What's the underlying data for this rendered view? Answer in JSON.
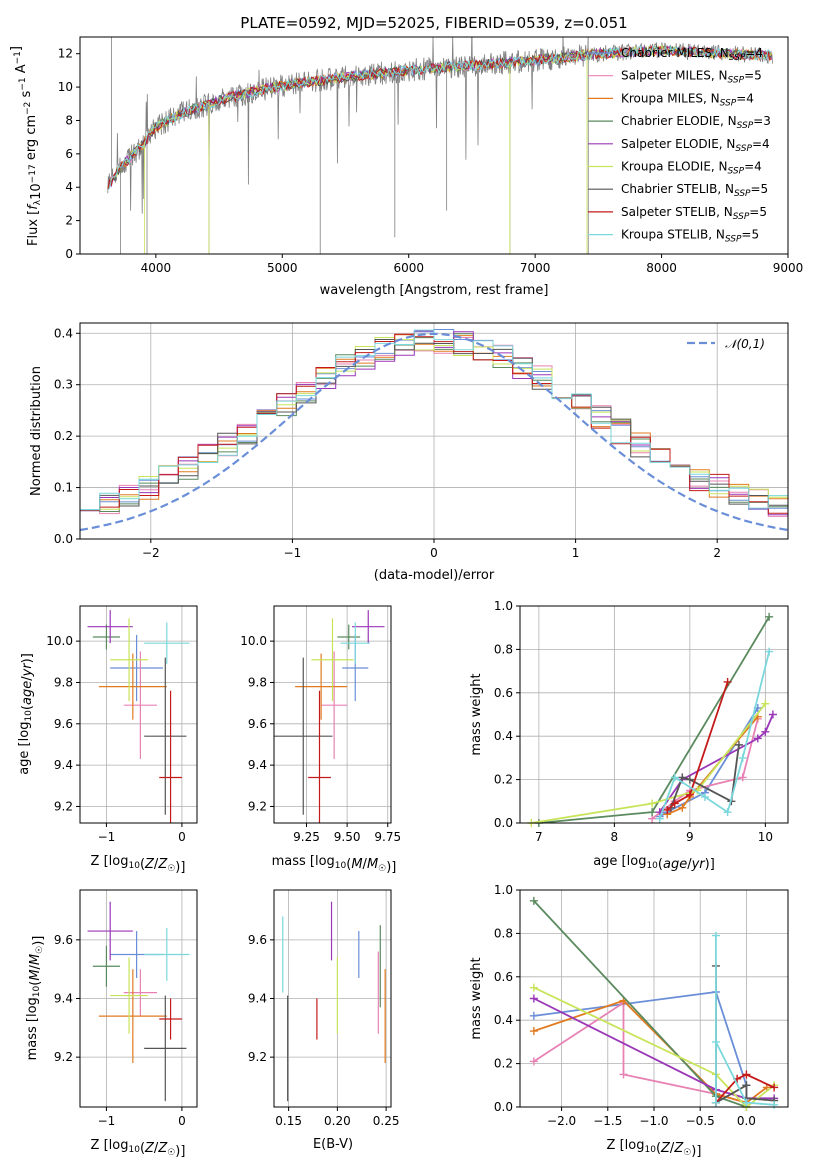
{
  "figure": {
    "title": "PLATE=0592, MJD=52025, FIBERID=0539, z=0.051",
    "background": "#ffffff"
  },
  "colors": {
    "Chabrier MILES": "#6a8fd8",
    "Salpeter MILES": "#e882b4",
    "Kroupa MILES": "#e07b20",
    "Chabrier ELODIE": "#5a8a5e",
    "Salpeter ELODIE": "#9a36b8",
    "Kroupa ELODIE": "#c8e45a",
    "Chabrier STELIB": "#555555",
    "Salpeter STELIB": "#c41a1a",
    "Kroupa STELIB": "#7ad8dc",
    "spectrum": "#808080"
  },
  "chart_data": [
    {
      "id": "spectrum",
      "type": "line",
      "title": "PLATE=0592, MJD=52025, FIBERID=0539, z=0.051",
      "xlabel": "wavelength [Angstrom, rest frame]",
      "ylabel": "Flux [f_λ 10^-17 erg cm^-2 s^-1 A^-1]",
      "xlim": [
        3400,
        9000
      ],
      "ylim": [
        0,
        13
      ],
      "xticks": [
        4000,
        5000,
        6000,
        7000,
        8000,
        9000
      ],
      "yticks": [
        0,
        2,
        4,
        6,
        8,
        10,
        12
      ],
      "legend_position": "right",
      "grid": false,
      "legend": [
        {
          "label": "Chabrier MILES, N",
          "sub": "SSP",
          "tail": "=4"
        },
        {
          "label": "Salpeter MILES, N",
          "sub": "SSP",
          "tail": "=5"
        },
        {
          "label": "Kroupa MILES, N",
          "sub": "SSP",
          "tail": "=4"
        },
        {
          "label": "Chabrier ELODIE, N",
          "sub": "SSP",
          "tail": "=3"
        },
        {
          "label": "Salpeter ELODIE, N",
          "sub": "SSP",
          "tail": "=4"
        },
        {
          "label": "Kroupa ELODIE, N",
          "sub": "SSP",
          "tail": "=4"
        },
        {
          "label": "Chabrier STELIB, N",
          "sub": "SSP",
          "tail": "=5"
        },
        {
          "label": "Salpeter STELIB, N",
          "sub": "SSP",
          "tail": "=5"
        },
        {
          "label": "Kroupa STELIB, N",
          "sub": "SSP",
          "tail": "=5"
        }
      ],
      "continuum": {
        "x": [
          3620,
          3700,
          3800,
          3900,
          4000,
          4200,
          4500,
          4800,
          5100,
          5500,
          6000,
          6500,
          7000,
          7500,
          8000,
          8500,
          8900
        ],
        "y": [
          4.0,
          5.0,
          5.8,
          6.6,
          7.6,
          8.4,
          9.2,
          9.8,
          10.2,
          10.6,
          11.0,
          11.3,
          11.6,
          12.0,
          12.2,
          12.0,
          11.9
        ]
      }
    },
    {
      "id": "residuals",
      "type": "line",
      "xlabel": "(data-model)/error",
      "ylabel": "Normed distribution",
      "xlim": [
        -2.5,
        2.5
      ],
      "ylim": [
        0,
        0.42
      ],
      "xticks": [
        -2,
        -1,
        0,
        1,
        2
      ],
      "yticks": [
        0.0,
        0.1,
        0.2,
        0.3,
        0.4
      ],
      "grid": true,
      "legend": [
        {
          "label": "𝒩(0,1)",
          "style": "dashed",
          "color": "#6a8fd8"
        }
      ],
      "legend_position": "top-right"
    },
    {
      "id": "age-vs-Z",
      "type": "scatter",
      "xlabel": "Z [log10(Z/Z☉)]",
      "ylabel": "age [log10(age/yr)]",
      "xlim": [
        -1.35,
        0.2
      ],
      "ylim": [
        9.12,
        10.17
      ],
      "xticks": [
        -1,
        0
      ],
      "yticks": [
        9.2,
        9.4,
        9.6,
        9.8,
        10.0
      ],
      "grid": true,
      "points": [
        {
          "model": "Chabrier MILES",
          "x": -0.6,
          "y": 9.87,
          "xerr": 0.35,
          "yerr": 0.16
        },
        {
          "model": "Salpeter MILES",
          "x": -0.55,
          "y": 9.69,
          "xerr": 0.22,
          "yerr": 0.26
        },
        {
          "model": "Kroupa MILES",
          "x": -0.65,
          "y": 9.78,
          "xerr": 0.45,
          "yerr": 0.16
        },
        {
          "model": "Chabrier ELODIE",
          "x": -1.0,
          "y": 10.02,
          "xerr": 0.18,
          "yerr": 0.06
        },
        {
          "model": "Salpeter ELODIE",
          "x": -0.95,
          "y": 10.07,
          "xerr": 0.3,
          "yerr": 0.08
        },
        {
          "model": "Kroupa ELODIE",
          "x": -0.7,
          "y": 9.91,
          "xerr": 0.25,
          "yerr": 0.2
        },
        {
          "model": "Chabrier STELIB",
          "x": -0.22,
          "y": 9.54,
          "xerr": 0.28,
          "yerr": 0.38
        },
        {
          "model": "Salpeter STELIB",
          "x": -0.15,
          "y": 9.34,
          "xerr": 0.15,
          "yerr": 0.42
        },
        {
          "model": "Kroupa STELIB",
          "x": -0.2,
          "y": 9.99,
          "xerr": 0.3,
          "yerr": 0.1
        }
      ]
    },
    {
      "id": "age-vs-mass",
      "type": "scatter",
      "xlabel": "mass [log10(M/M☉)]",
      "xlim": [
        9.05,
        9.77
      ],
      "ylim": [
        9.12,
        10.17
      ],
      "xticks": [
        9.25,
        9.5,
        9.75
      ],
      "yticks": [
        9.2,
        9.4,
        9.6,
        9.8,
        10.0
      ],
      "grid": true,
      "points": [
        {
          "model": "Chabrier MILES",
          "x": 9.55,
          "y": 9.87,
          "xerr": 0.08,
          "yerr": 0.16
        },
        {
          "model": "Salpeter MILES",
          "x": 9.42,
          "y": 9.69,
          "xerr": 0.08,
          "yerr": 0.26
        },
        {
          "model": "Kroupa MILES",
          "x": 9.34,
          "y": 9.78,
          "xerr": 0.16,
          "yerr": 0.16
        },
        {
          "model": "Chabrier ELODIE",
          "x": 9.51,
          "y": 10.02,
          "xerr": 0.07,
          "yerr": 0.06
        },
        {
          "model": "Salpeter ELODIE",
          "x": 9.63,
          "y": 10.07,
          "xerr": 0.1,
          "yerr": 0.08
        },
        {
          "model": "Kroupa ELODIE",
          "x": 9.41,
          "y": 9.91,
          "xerr": 0.13,
          "yerr": 0.2
        },
        {
          "model": "Chabrier STELIB",
          "x": 9.23,
          "y": 9.54,
          "xerr": 0.18,
          "yerr": 0.38
        },
        {
          "model": "Salpeter STELIB",
          "x": 9.33,
          "y": 9.34,
          "xerr": 0.07,
          "yerr": 0.42
        },
        {
          "model": "Kroupa STELIB",
          "x": 9.55,
          "y": 9.99,
          "xerr": 0.09,
          "yerr": 0.1
        }
      ]
    },
    {
      "id": "weight-vs-age",
      "type": "line",
      "xlabel": "age [log10(age/yr)]",
      "ylabel": "mass weight",
      "xlim": [
        6.75,
        10.3
      ],
      "ylim": [
        0,
        1.0
      ],
      "xticks": [
        7,
        8,
        9,
        10
      ],
      "yticks": [
        0.0,
        0.2,
        0.4,
        0.6,
        0.8,
        1.0
      ],
      "grid": true,
      "series": [
        {
          "name": "Chabrier MILES",
          "x": [
            8.6,
            8.7,
            9.2,
            9.9
          ],
          "y": [
            0.03,
            0.05,
            0.14,
            0.53
          ]
        },
        {
          "name": "Salpeter MILES",
          "x": [
            8.5,
            8.8,
            9.0,
            9.7,
            9.9
          ],
          "y": [
            0.02,
            0.1,
            0.15,
            0.21,
            0.48
          ]
        },
        {
          "name": "Kroupa MILES",
          "x": [
            8.7,
            8.9,
            9.0,
            9.9
          ],
          "y": [
            0.04,
            0.07,
            0.12,
            0.49
          ]
        },
        {
          "name": "Chabrier ELODIE",
          "x": [
            7.0,
            8.5,
            10.05
          ],
          "y": [
            0.0,
            0.05,
            0.95
          ]
        },
        {
          "name": "Salpeter ELODIE",
          "x": [
            8.6,
            8.9,
            9.9,
            10.0,
            10.1
          ],
          "y": [
            0.05,
            0.2,
            0.39,
            0.42,
            0.5
          ]
        },
        {
          "name": "Kroupa ELODIE",
          "x": [
            6.9,
            8.5,
            9.1,
            10.0
          ],
          "y": [
            0.0,
            0.09,
            0.15,
            0.55
          ]
        },
        {
          "name": "Chabrier STELIB",
          "x": [
            8.75,
            8.9,
            9.0,
            9.55,
            9.65
          ],
          "y": [
            0.07,
            0.21,
            0.2,
            0.1,
            0.36
          ]
        },
        {
          "name": "Salpeter STELIB",
          "x": [
            8.7,
            8.8,
            9.0,
            9.5
          ],
          "y": [
            0.06,
            0.09,
            0.13,
            0.65
          ]
        },
        {
          "name": "Kroupa STELIB",
          "x": [
            8.6,
            8.8,
            9.2,
            9.5,
            9.7,
            10.05
          ],
          "y": [
            0.02,
            0.21,
            0.12,
            0.05,
            0.3,
            0.79
          ]
        }
      ]
    },
    {
      "id": "mass-vs-Z",
      "type": "scatter",
      "xlabel": "Z [log10(Z/Z☉)]",
      "ylabel": "mass [log10(M/M☉)]",
      "xlim": [
        -1.35,
        0.2
      ],
      "ylim": [
        9.03,
        9.77
      ],
      "xticks": [
        -1,
        0
      ],
      "yticks": [
        9.2,
        9.4,
        9.6
      ],
      "grid": true,
      "points": [
        {
          "model": "Chabrier MILES",
          "x": -0.6,
          "y": 9.55,
          "xerr": 0.35,
          "yerr": 0.08
        },
        {
          "model": "Salpeter MILES",
          "x": -0.55,
          "y": 9.42,
          "xerr": 0.22,
          "yerr": 0.08
        },
        {
          "model": "Kroupa MILES",
          "x": -0.65,
          "y": 9.34,
          "xerr": 0.45,
          "yerr": 0.16
        },
        {
          "model": "Chabrier ELODIE",
          "x": -1.0,
          "y": 9.51,
          "xerr": 0.18,
          "yerr": 0.07
        },
        {
          "model": "Salpeter ELODIE",
          "x": -0.95,
          "y": 9.63,
          "xerr": 0.3,
          "yerr": 0.1
        },
        {
          "model": "Kroupa ELODIE",
          "x": -0.7,
          "y": 9.41,
          "xerr": 0.25,
          "yerr": 0.13
        },
        {
          "model": "Chabrier STELIB",
          "x": -0.22,
          "y": 9.23,
          "xerr": 0.28,
          "yerr": 0.18
        },
        {
          "model": "Salpeter STELIB",
          "x": -0.15,
          "y": 9.33,
          "xerr": 0.15,
          "yerr": 0.07
        },
        {
          "model": "Kroupa STELIB",
          "x": -0.2,
          "y": 9.55,
          "xerr": 0.3,
          "yerr": 0.09
        }
      ]
    },
    {
      "id": "mass-vs-ebv",
      "type": "scatter",
      "xlabel": "E(B-V)",
      "xlim": [
        0.135,
        0.255
      ],
      "ylim": [
        9.03,
        9.77
      ],
      "xticks": [
        0.15,
        0.2,
        0.25
      ],
      "yticks": [
        9.2,
        9.4,
        9.6
      ],
      "grid": true,
      "points": [
        {
          "model": "Chabrier MILES",
          "x": 0.222,
          "y": 9.55,
          "yerr": 0.08
        },
        {
          "model": "Salpeter MILES",
          "x": 0.242,
          "y": 9.42,
          "yerr": 0.14
        },
        {
          "model": "Kroupa MILES",
          "x": 0.249,
          "y": 9.34,
          "yerr": 0.16
        },
        {
          "model": "Chabrier ELODIE",
          "x": 0.244,
          "y": 9.51,
          "yerr": 0.14
        },
        {
          "model": "Salpeter ELODIE",
          "x": 0.194,
          "y": 9.63,
          "yerr": 0.1
        },
        {
          "model": "Kroupa ELODIE",
          "x": 0.2,
          "y": 9.41,
          "yerr": 0.13
        },
        {
          "model": "Chabrier STELIB",
          "x": 0.149,
          "y": 9.23,
          "yerr": 0.18
        },
        {
          "model": "Salpeter STELIB",
          "x": 0.179,
          "y": 9.33,
          "yerr": 0.07
        },
        {
          "model": "Kroupa STELIB",
          "x": 0.144,
          "y": 9.55,
          "yerr": 0.13
        }
      ]
    },
    {
      "id": "weight-vs-Z",
      "type": "line",
      "xlabel": "Z [log10(Z/Z☉)]",
      "ylabel": "mass weight",
      "xlim": [
        -2.45,
        0.45
      ],
      "ylim": [
        0,
        1.0
      ],
      "xticks": [
        -2.0,
        -1.5,
        -1.0,
        -0.5,
        0.0
      ],
      "yticks": [
        0.0,
        0.2,
        0.4,
        0.6,
        0.8,
        1.0
      ],
      "grid": true,
      "series": [
        {
          "name": "Chabrier MILES",
          "x": [
            -2.3,
            -0.33,
            0.0,
            0.0
          ],
          "y": [
            0.42,
            0.53,
            0.1,
            0.02
          ]
        },
        {
          "name": "Salpeter MILES",
          "x": [
            -2.3,
            -1.33,
            -1.33,
            -0.33,
            0.0
          ],
          "y": [
            0.21,
            0.48,
            0.15,
            0.06,
            0.02
          ]
        },
        {
          "name": "Kroupa MILES",
          "x": [
            -2.3,
            -1.33,
            -0.33,
            0.0,
            0.22
          ],
          "y": [
            0.35,
            0.49,
            0.06,
            0.02,
            0.09
          ]
        },
        {
          "name": "Chabrier ELODIE",
          "x": [
            -2.3,
            -0.33,
            0.0
          ],
          "y": [
            0.95,
            0.05,
            0.0
          ]
        },
        {
          "name": "Salpeter ELODIE",
          "x": [
            -2.3,
            -0.33,
            0.0,
            0.3
          ],
          "y": [
            0.5,
            0.08,
            0.04,
            0.04
          ]
        },
        {
          "name": "Kroupa ELODIE",
          "x": [
            -2.3,
            -0.33,
            0.0,
            0.3
          ],
          "y": [
            0.55,
            0.15,
            0.0,
            0.1
          ]
        },
        {
          "name": "Chabrier STELIB",
          "x": [
            -0.33,
            -0.33,
            0.0,
            0.0,
            0.3
          ],
          "y": [
            0.65,
            0.02,
            0.1,
            0.04,
            0.03
          ]
        },
        {
          "name": "Salpeter STELIB",
          "x": [
            -0.33,
            -0.1,
            0.0,
            0.3
          ],
          "y": [
            0.02,
            0.13,
            0.15,
            0.09
          ]
        },
        {
          "name": "Kroupa STELIB",
          "x": [
            -0.33,
            -0.33,
            -0.33,
            0.0,
            0.3
          ],
          "y": [
            0.79,
            0.02,
            0.3,
            0.02,
            0.01
          ]
        }
      ]
    }
  ]
}
